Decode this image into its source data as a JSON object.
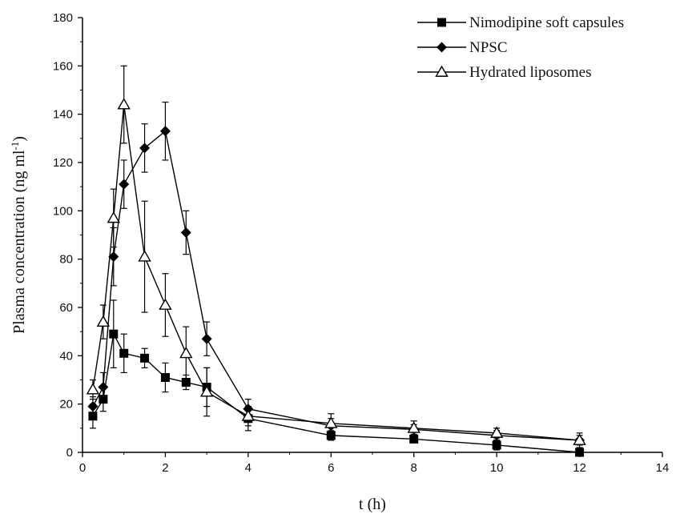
{
  "chart_data": {
    "type": "line",
    "xlabel": "t (h)",
    "ylabel": "Plasma concentration (ng ml",
    "ylabel_superscript": "-1",
    "ylabel_suffix": ")",
    "xlim": [
      0,
      14
    ],
    "ylim": [
      0,
      180
    ],
    "xticks": [
      0,
      2,
      4,
      6,
      8,
      10,
      12,
      14
    ],
    "yticks": [
      0,
      20,
      40,
      60,
      80,
      100,
      120,
      140,
      160,
      180
    ],
    "grid": false,
    "legend_position": "top-right",
    "series": [
      {
        "name": "Nimodipine soft capsules",
        "marker": "filled-square",
        "color": "#000000",
        "x": [
          0.25,
          0.5,
          0.75,
          1,
          1.5,
          2,
          2.5,
          3,
          4,
          6,
          8,
          10,
          12
        ],
        "y": [
          15,
          22,
          49,
          41,
          39,
          31,
          29,
          27,
          14,
          7,
          5.5,
          3,
          0
        ],
        "err": [
          5,
          5,
          14,
          8,
          4,
          6,
          3,
          8,
          5,
          2,
          1.5,
          2,
          0
        ]
      },
      {
        "name": "NPSC",
        "marker": "filled-diamond",
        "color": "#000000",
        "x": [
          0.25,
          0.5,
          0.75,
          1,
          1.5,
          2,
          2.5,
          3,
          4,
          6,
          8,
          10,
          12
        ],
        "y": [
          19,
          27,
          81,
          111,
          126,
          133,
          91,
          47,
          18,
          11,
          9.5,
          7,
          5
        ],
        "err": [
          4,
          6,
          12,
          10,
          10,
          12,
          9,
          7,
          4,
          3,
          2,
          2,
          2
        ]
      },
      {
        "name": "Hydrated liposomes",
        "marker": "open-triangle",
        "color": "#000000",
        "x": [
          0.25,
          0.5,
          0.75,
          1,
          1.5,
          2,
          2.5,
          3,
          4,
          6,
          8,
          10,
          12
        ],
        "y": [
          26,
          54,
          97,
          144,
          81,
          61,
          41,
          25,
          15,
          12,
          10,
          8,
          5
        ],
        "err": [
          4,
          7,
          12,
          16,
          23,
          13,
          11,
          10,
          4,
          4,
          3,
          2,
          3
        ]
      }
    ]
  }
}
